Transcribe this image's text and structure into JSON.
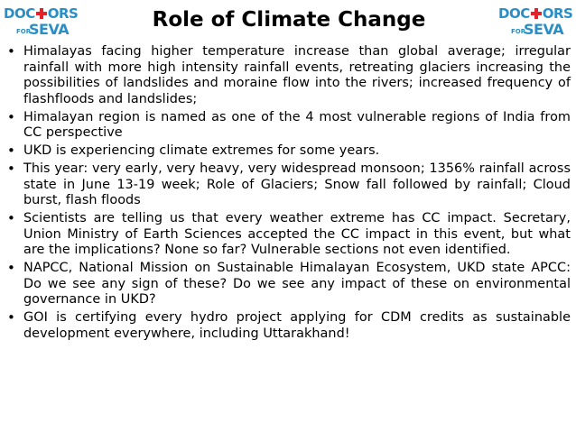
{
  "title": "Role of Climate Change",
  "logo": {
    "top_text_a": "DOC",
    "top_text_b": "ORS",
    "for_text": "FOR",
    "seva_text": "SEVA"
  },
  "bullets": [
    "Himalayas facing higher temperature increase than global average; irregular rainfall with more high intensity rainfall events, retreating glaciers increasing the possibilities of landslides and moraine flow into the rivers; increased frequency of flashfloods and landslides;",
    "Himalayan region is named as one of the 4 most vulnerable regions of India from CC perspective",
    "UKD is experiencing climate extremes for some years.",
    "This year: very early, very heavy, very widespread monsoon; 1356% rainfall across state in June 13-19 week; Role of Glaciers; Snow fall followed by rainfall; Cloud burst, flash floods",
    "Scientists are telling us that every weather extreme has CC impact. Secretary, Union Ministry of Earth Sciences accepted the CC impact in this event, but what are the implications? None so far? Vulnerable sections not even identified.",
    "NAPCC, National Mission on Sustainable Himalayan Ecosystem, UKD state APCC: Do we see any sign of these? Do we see any impact of these on environmental governance in UKD?",
    "GOI is certifying every hydro project applying for CDM credits as sustainable development everywhere, including Uttarakhand!"
  ],
  "colors": {
    "logo_blue": "#2a8fc6",
    "logo_red": "#e2232a"
  },
  "icons": {
    "logo_mark": "red-cross-icon"
  }
}
